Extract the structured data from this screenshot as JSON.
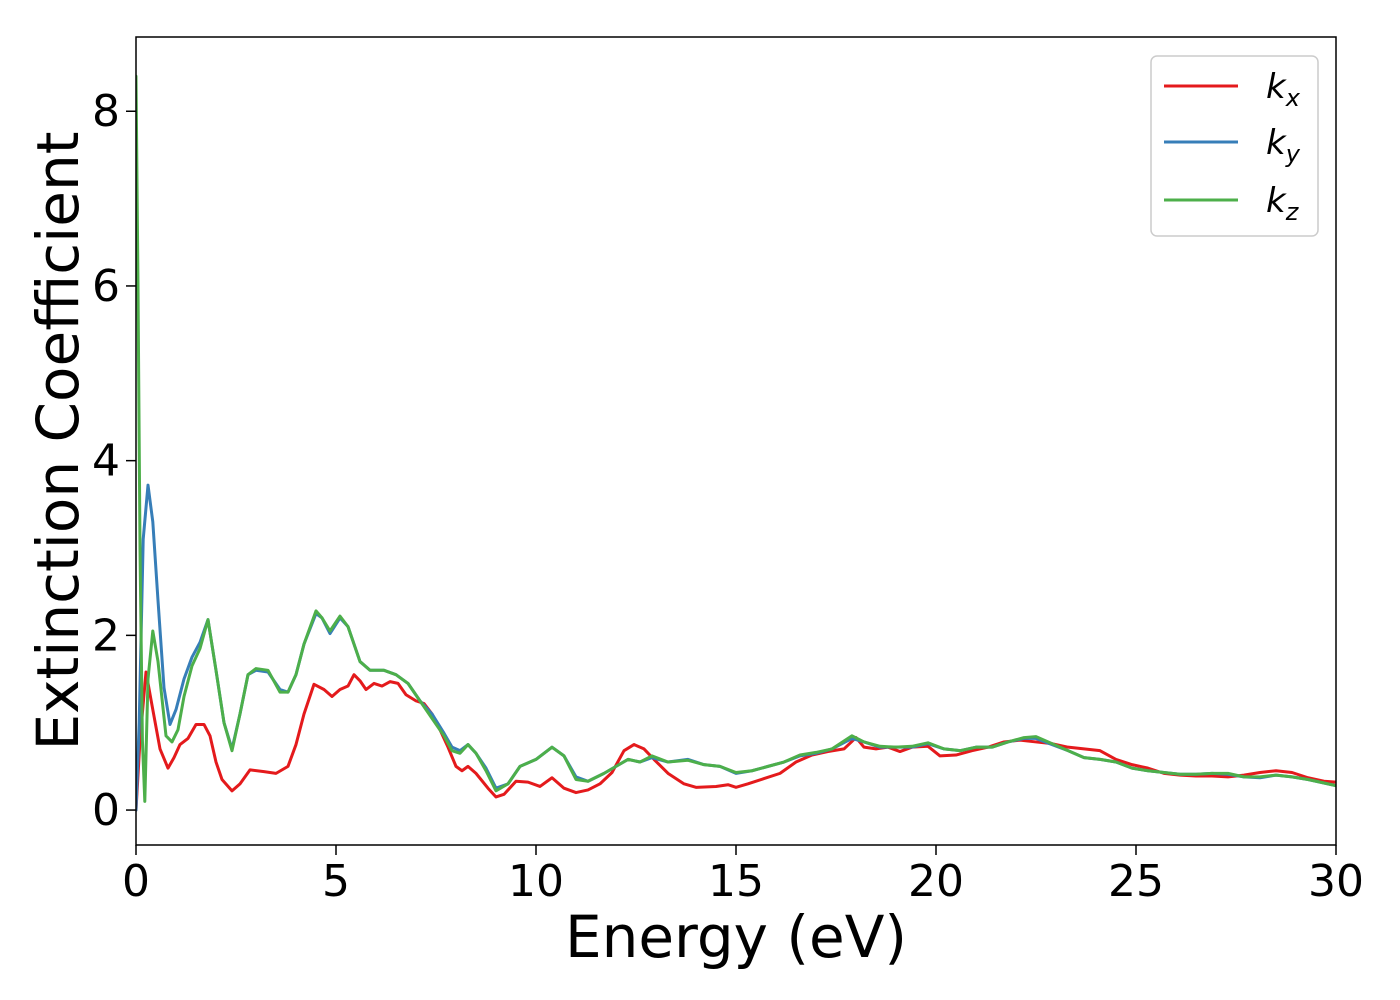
{
  "chart_data": {
    "type": "line",
    "title": "",
    "xlabel": "Energy (eV)",
    "ylabel": "Extinction Coefficient",
    "xlim": [
      0,
      30
    ],
    "ylim": [
      -0.4,
      8.85
    ],
    "xticks": [
      0,
      5,
      10,
      15,
      20,
      25,
      30
    ],
    "xtick_labels": [
      "0",
      "5",
      "10",
      "15",
      "20",
      "25",
      "30"
    ],
    "yticks": [
      0,
      2,
      4,
      6,
      8
    ],
    "ytick_labels": [
      "0",
      "2",
      "4",
      "6",
      "8"
    ],
    "grid": false,
    "legend_placement": "top-right",
    "series": [
      {
        "name": "k_x",
        "legend_main": "k",
        "legend_sub": "x",
        "color": "#e41a1c",
        "points": [
          [
            0,
            0
          ],
          [
            0.1,
            0.8
          ],
          [
            0.25,
            1.58
          ],
          [
            0.4,
            1.2
          ],
          [
            0.6,
            0.7
          ],
          [
            0.8,
            0.48
          ],
          [
            0.95,
            0.6
          ],
          [
            1.1,
            0.75
          ],
          [
            1.3,
            0.82
          ],
          [
            1.5,
            0.98
          ],
          [
            1.7,
            0.98
          ],
          [
            1.85,
            0.85
          ],
          [
            2.0,
            0.55
          ],
          [
            2.15,
            0.35
          ],
          [
            2.4,
            0.22
          ],
          [
            2.6,
            0.3
          ],
          [
            2.85,
            0.46
          ],
          [
            3.2,
            0.44
          ],
          [
            3.5,
            0.42
          ],
          [
            3.8,
            0.5
          ],
          [
            4.0,
            0.75
          ],
          [
            4.2,
            1.1
          ],
          [
            4.45,
            1.44
          ],
          [
            4.7,
            1.38
          ],
          [
            4.9,
            1.3
          ],
          [
            5.1,
            1.38
          ],
          [
            5.3,
            1.42
          ],
          [
            5.45,
            1.55
          ],
          [
            5.6,
            1.48
          ],
          [
            5.75,
            1.38
          ],
          [
            5.95,
            1.45
          ],
          [
            6.15,
            1.42
          ],
          [
            6.35,
            1.47
          ],
          [
            6.55,
            1.45
          ],
          [
            6.75,
            1.32
          ],
          [
            7.0,
            1.25
          ],
          [
            7.2,
            1.22
          ],
          [
            7.4,
            1.1
          ],
          [
            7.6,
            0.92
          ],
          [
            7.8,
            0.72
          ],
          [
            8.0,
            0.5
          ],
          [
            8.15,
            0.45
          ],
          [
            8.3,
            0.5
          ],
          [
            8.5,
            0.42
          ],
          [
            8.8,
            0.25
          ],
          [
            9.0,
            0.15
          ],
          [
            9.2,
            0.18
          ],
          [
            9.5,
            0.33
          ],
          [
            9.8,
            0.32
          ],
          [
            10.1,
            0.27
          ],
          [
            10.4,
            0.37
          ],
          [
            10.7,
            0.25
          ],
          [
            11.0,
            0.2
          ],
          [
            11.3,
            0.23
          ],
          [
            11.6,
            0.3
          ],
          [
            11.9,
            0.43
          ],
          [
            12.2,
            0.68
          ],
          [
            12.45,
            0.75
          ],
          [
            12.7,
            0.7
          ],
          [
            12.95,
            0.58
          ],
          [
            13.3,
            0.42
          ],
          [
            13.7,
            0.3
          ],
          [
            14.0,
            0.26
          ],
          [
            14.5,
            0.27
          ],
          [
            14.8,
            0.29
          ],
          [
            15.0,
            0.26
          ],
          [
            15.3,
            0.3
          ],
          [
            15.7,
            0.36
          ],
          [
            16.1,
            0.42
          ],
          [
            16.5,
            0.55
          ],
          [
            16.9,
            0.63
          ],
          [
            17.3,
            0.67
          ],
          [
            17.7,
            0.7
          ],
          [
            18.0,
            0.83
          ],
          [
            18.2,
            0.72
          ],
          [
            18.5,
            0.7
          ],
          [
            18.8,
            0.72
          ],
          [
            19.1,
            0.67
          ],
          [
            19.4,
            0.72
          ],
          [
            19.8,
            0.73
          ],
          [
            20.1,
            0.62
          ],
          [
            20.5,
            0.63
          ],
          [
            20.9,
            0.68
          ],
          [
            21.3,
            0.72
          ],
          [
            21.7,
            0.78
          ],
          [
            22.1,
            0.8
          ],
          [
            22.5,
            0.78
          ],
          [
            22.9,
            0.76
          ],
          [
            23.3,
            0.72
          ],
          [
            23.7,
            0.7
          ],
          [
            24.1,
            0.68
          ],
          [
            24.5,
            0.58
          ],
          [
            24.9,
            0.52
          ],
          [
            25.3,
            0.48
          ],
          [
            25.7,
            0.42
          ],
          [
            26.1,
            0.4
          ],
          [
            26.5,
            0.39
          ],
          [
            26.9,
            0.39
          ],
          [
            27.3,
            0.38
          ],
          [
            27.7,
            0.4
          ],
          [
            28.1,
            0.43
          ],
          [
            28.5,
            0.45
          ],
          [
            28.9,
            0.43
          ],
          [
            29.3,
            0.37
          ],
          [
            29.7,
            0.33
          ],
          [
            30.0,
            0.32
          ]
        ]
      },
      {
        "name": "k_y",
        "legend_main": "k",
        "legend_sub": "y",
        "color": "#377eb8",
        "points": [
          [
            0,
            0
          ],
          [
            0.08,
            1.0
          ],
          [
            0.18,
            3.1
          ],
          [
            0.3,
            3.72
          ],
          [
            0.42,
            3.3
          ],
          [
            0.55,
            2.4
          ],
          [
            0.7,
            1.4
          ],
          [
            0.85,
            0.98
          ],
          [
            1.0,
            1.15
          ],
          [
            1.2,
            1.5
          ],
          [
            1.4,
            1.75
          ],
          [
            1.6,
            1.92
          ],
          [
            1.8,
            2.18
          ],
          [
            2.0,
            1.6
          ],
          [
            2.2,
            1.0
          ],
          [
            2.4,
            0.7
          ],
          [
            2.6,
            1.1
          ],
          [
            2.8,
            1.55
          ],
          [
            3.0,
            1.6
          ],
          [
            3.3,
            1.58
          ],
          [
            3.6,
            1.38
          ],
          [
            3.8,
            1.35
          ],
          [
            4.0,
            1.55
          ],
          [
            4.2,
            1.9
          ],
          [
            4.5,
            2.25
          ],
          [
            4.65,
            2.2
          ],
          [
            4.85,
            2.02
          ],
          [
            5.1,
            2.2
          ],
          [
            5.3,
            2.1
          ],
          [
            5.6,
            1.7
          ],
          [
            5.85,
            1.6
          ],
          [
            6.2,
            1.6
          ],
          [
            6.5,
            1.55
          ],
          [
            6.8,
            1.45
          ],
          [
            7.1,
            1.25
          ],
          [
            7.4,
            1.1
          ],
          [
            7.7,
            0.88
          ],
          [
            7.9,
            0.72
          ],
          [
            8.1,
            0.68
          ],
          [
            8.3,
            0.75
          ],
          [
            8.5,
            0.65
          ],
          [
            8.75,
            0.48
          ],
          [
            9.0,
            0.25
          ],
          [
            9.3,
            0.3
          ],
          [
            9.6,
            0.5
          ],
          [
            10.0,
            0.58
          ],
          [
            10.4,
            0.72
          ],
          [
            10.7,
            0.62
          ],
          [
            11.0,
            0.38
          ],
          [
            11.3,
            0.33
          ],
          [
            11.7,
            0.42
          ],
          [
            12.0,
            0.5
          ],
          [
            12.3,
            0.58
          ],
          [
            12.6,
            0.55
          ],
          [
            12.9,
            0.6
          ],
          [
            13.3,
            0.55
          ],
          [
            13.8,
            0.58
          ],
          [
            14.2,
            0.52
          ],
          [
            14.6,
            0.5
          ],
          [
            15.0,
            0.42
          ],
          [
            15.4,
            0.45
          ],
          [
            15.8,
            0.5
          ],
          [
            16.2,
            0.55
          ],
          [
            16.6,
            0.62
          ],
          [
            17.0,
            0.65
          ],
          [
            17.4,
            0.7
          ],
          [
            17.9,
            0.82
          ],
          [
            18.2,
            0.78
          ],
          [
            18.6,
            0.72
          ],
          [
            19.0,
            0.72
          ],
          [
            19.4,
            0.72
          ],
          [
            19.8,
            0.76
          ],
          [
            20.2,
            0.7
          ],
          [
            20.6,
            0.68
          ],
          [
            21.0,
            0.72
          ],
          [
            21.4,
            0.72
          ],
          [
            21.8,
            0.78
          ],
          [
            22.2,
            0.82
          ],
          [
            22.5,
            0.82
          ],
          [
            22.9,
            0.75
          ],
          [
            23.3,
            0.68
          ],
          [
            23.7,
            0.6
          ],
          [
            24.1,
            0.58
          ],
          [
            24.5,
            0.55
          ],
          [
            24.9,
            0.48
          ],
          [
            25.3,
            0.45
          ],
          [
            25.7,
            0.43
          ],
          [
            26.1,
            0.41
          ],
          [
            26.5,
            0.41
          ],
          [
            26.9,
            0.42
          ],
          [
            27.3,
            0.41
          ],
          [
            27.7,
            0.38
          ],
          [
            28.1,
            0.37
          ],
          [
            28.5,
            0.4
          ],
          [
            28.9,
            0.38
          ],
          [
            29.3,
            0.35
          ],
          [
            29.7,
            0.31
          ],
          [
            30.0,
            0.28
          ]
        ]
      },
      {
        "name": "k_z",
        "legend_main": "k",
        "legend_sub": "z",
        "color": "#4daf4a",
        "points": [
          [
            0,
            8.4
          ],
          [
            0.05,
            6.0
          ],
          [
            0.1,
            3.0
          ],
          [
            0.16,
            0.8
          ],
          [
            0.22,
            0.1
          ],
          [
            0.3,
            1.5
          ],
          [
            0.42,
            2.05
          ],
          [
            0.55,
            1.7
          ],
          [
            0.75,
            0.85
          ],
          [
            0.9,
            0.78
          ],
          [
            1.05,
            0.92
          ],
          [
            1.2,
            1.3
          ],
          [
            1.4,
            1.65
          ],
          [
            1.6,
            1.85
          ],
          [
            1.8,
            2.18
          ],
          [
            2.0,
            1.6
          ],
          [
            2.2,
            1.0
          ],
          [
            2.4,
            0.68
          ],
          [
            2.6,
            1.1
          ],
          [
            2.8,
            1.55
          ],
          [
            3.0,
            1.62
          ],
          [
            3.3,
            1.6
          ],
          [
            3.6,
            1.35
          ],
          [
            3.8,
            1.35
          ],
          [
            4.0,
            1.55
          ],
          [
            4.2,
            1.9
          ],
          [
            4.5,
            2.28
          ],
          [
            4.65,
            2.2
          ],
          [
            4.85,
            2.05
          ],
          [
            5.1,
            2.22
          ],
          [
            5.3,
            2.1
          ],
          [
            5.6,
            1.7
          ],
          [
            5.85,
            1.6
          ],
          [
            6.2,
            1.6
          ],
          [
            6.5,
            1.55
          ],
          [
            6.8,
            1.45
          ],
          [
            7.1,
            1.25
          ],
          [
            7.4,
            1.05
          ],
          [
            7.7,
            0.85
          ],
          [
            7.9,
            0.68
          ],
          [
            8.1,
            0.65
          ],
          [
            8.3,
            0.75
          ],
          [
            8.5,
            0.65
          ],
          [
            8.75,
            0.45
          ],
          [
            9.0,
            0.22
          ],
          [
            9.3,
            0.3
          ],
          [
            9.6,
            0.5
          ],
          [
            10.0,
            0.58
          ],
          [
            10.4,
            0.72
          ],
          [
            10.7,
            0.62
          ],
          [
            11.0,
            0.35
          ],
          [
            11.3,
            0.33
          ],
          [
            11.7,
            0.42
          ],
          [
            12.0,
            0.5
          ],
          [
            12.3,
            0.58
          ],
          [
            12.6,
            0.55
          ],
          [
            12.9,
            0.62
          ],
          [
            13.3,
            0.55
          ],
          [
            13.8,
            0.57
          ],
          [
            14.2,
            0.52
          ],
          [
            14.6,
            0.5
          ],
          [
            15.0,
            0.43
          ],
          [
            15.4,
            0.45
          ],
          [
            15.8,
            0.5
          ],
          [
            16.2,
            0.55
          ],
          [
            16.6,
            0.63
          ],
          [
            17.0,
            0.66
          ],
          [
            17.4,
            0.7
          ],
          [
            17.9,
            0.85
          ],
          [
            18.2,
            0.78
          ],
          [
            18.6,
            0.73
          ],
          [
            19.0,
            0.72
          ],
          [
            19.4,
            0.73
          ],
          [
            19.8,
            0.77
          ],
          [
            20.2,
            0.7
          ],
          [
            20.6,
            0.68
          ],
          [
            21.0,
            0.72
          ],
          [
            21.4,
            0.72
          ],
          [
            21.8,
            0.78
          ],
          [
            22.2,
            0.83
          ],
          [
            22.5,
            0.84
          ],
          [
            22.9,
            0.76
          ],
          [
            23.3,
            0.68
          ],
          [
            23.7,
            0.6
          ],
          [
            24.1,
            0.58
          ],
          [
            24.5,
            0.55
          ],
          [
            24.9,
            0.48
          ],
          [
            25.3,
            0.45
          ],
          [
            25.7,
            0.43
          ],
          [
            26.1,
            0.41
          ],
          [
            26.5,
            0.41
          ],
          [
            26.9,
            0.42
          ],
          [
            27.3,
            0.42
          ],
          [
            27.7,
            0.38
          ],
          [
            28.1,
            0.38
          ],
          [
            28.5,
            0.4
          ],
          [
            28.9,
            0.38
          ],
          [
            29.3,
            0.35
          ],
          [
            29.7,
            0.31
          ],
          [
            30.0,
            0.28
          ]
        ]
      }
    ]
  }
}
